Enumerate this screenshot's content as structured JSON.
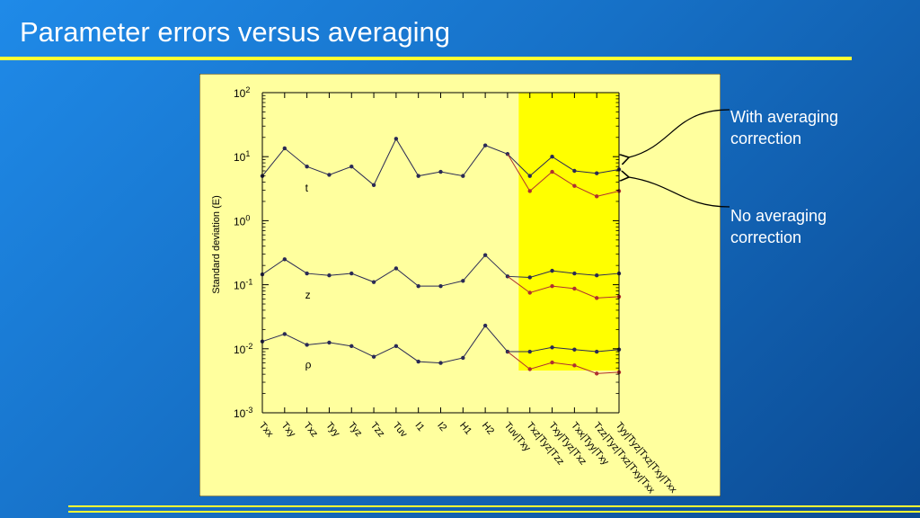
{
  "title": "Parameter errors versus averaging",
  "annotations": {
    "with_correction": [
      "With averaging",
      "correction"
    ],
    "no_correction": [
      "No averaging",
      "correction"
    ]
  },
  "colors": {
    "panel": "#ffff9e",
    "highlight": "#ffff00",
    "no_correction_series": "#2a2a55",
    "with_correction_series": "#b03030",
    "rule": "#ffff33"
  },
  "chart_data": {
    "type": "line",
    "title": "",
    "ylabel": "Standard deviation (E)",
    "yscale": "log",
    "ylim": [
      0.001,
      100
    ],
    "yticks": [
      {
        "value": 100,
        "base": "10",
        "exp": "2"
      },
      {
        "value": 10,
        "base": "10",
        "exp": "1"
      },
      {
        "value": 1,
        "base": "10",
        "exp": "0"
      },
      {
        "value": 0.1,
        "base": "10",
        "exp": "-1"
      },
      {
        "value": 0.01,
        "base": "10",
        "exp": "-2"
      },
      {
        "value": 0.001,
        "base": "10",
        "exp": "-3"
      }
    ],
    "categories": [
      "Txx",
      "Txy",
      "Txz",
      "Tyy",
      "Tyz",
      "Tzz",
      "Tuv",
      "I1",
      "I2",
      "H1",
      "H2",
      "Tuv|Txy",
      "Txz|Tyz|Tzz",
      "Txy|Tyz|Txz",
      "Txx|Tyy|Txy",
      "Tzz|Tyz|Txz|Txy|Txx",
      "Tyy|Tyz|Txz|Txy|Txx"
    ],
    "highlight_range": [
      11.5,
      16
    ],
    "series": [
      {
        "label": "t",
        "values": [
          5,
          13.5,
          7,
          5.2,
          7,
          3.6,
          19,
          5,
          5.8,
          5,
          15,
          11,
          5,
          10,
          6,
          5.5,
          6.3
        ]
      },
      {
        "label": "t",
        "values": [
          null,
          null,
          null,
          null,
          null,
          null,
          null,
          null,
          null,
          null,
          null,
          11,
          2.9,
          5.8,
          3.5,
          2.4,
          2.9
        ]
      },
      {
        "label": "z",
        "values": [
          0.145,
          0.25,
          0.15,
          0.14,
          0.15,
          0.11,
          0.18,
          0.095,
          0.095,
          0.115,
          0.29,
          0.135,
          0.13,
          0.165,
          0.15,
          0.14,
          0.15
        ]
      },
      {
        "label": "z",
        "values": [
          null,
          null,
          null,
          null,
          null,
          null,
          null,
          null,
          null,
          null,
          null,
          0.135,
          0.075,
          0.095,
          0.087,
          0.062,
          0.065
        ]
      },
      {
        "label": "ρ",
        "values": [
          0.013,
          0.017,
          0.0115,
          0.0125,
          0.011,
          0.0075,
          0.011,
          0.0063,
          0.006,
          0.0072,
          0.023,
          0.009,
          0.009,
          0.0105,
          0.0097,
          0.009,
          0.0097
        ]
      },
      {
        "label": "ρ",
        "values": [
          null,
          null,
          null,
          null,
          null,
          null,
          null,
          null,
          null,
          null,
          null,
          0.009,
          0.0048,
          0.0061,
          0.0055,
          0.0041,
          0.0043
        ]
      }
    ]
  }
}
